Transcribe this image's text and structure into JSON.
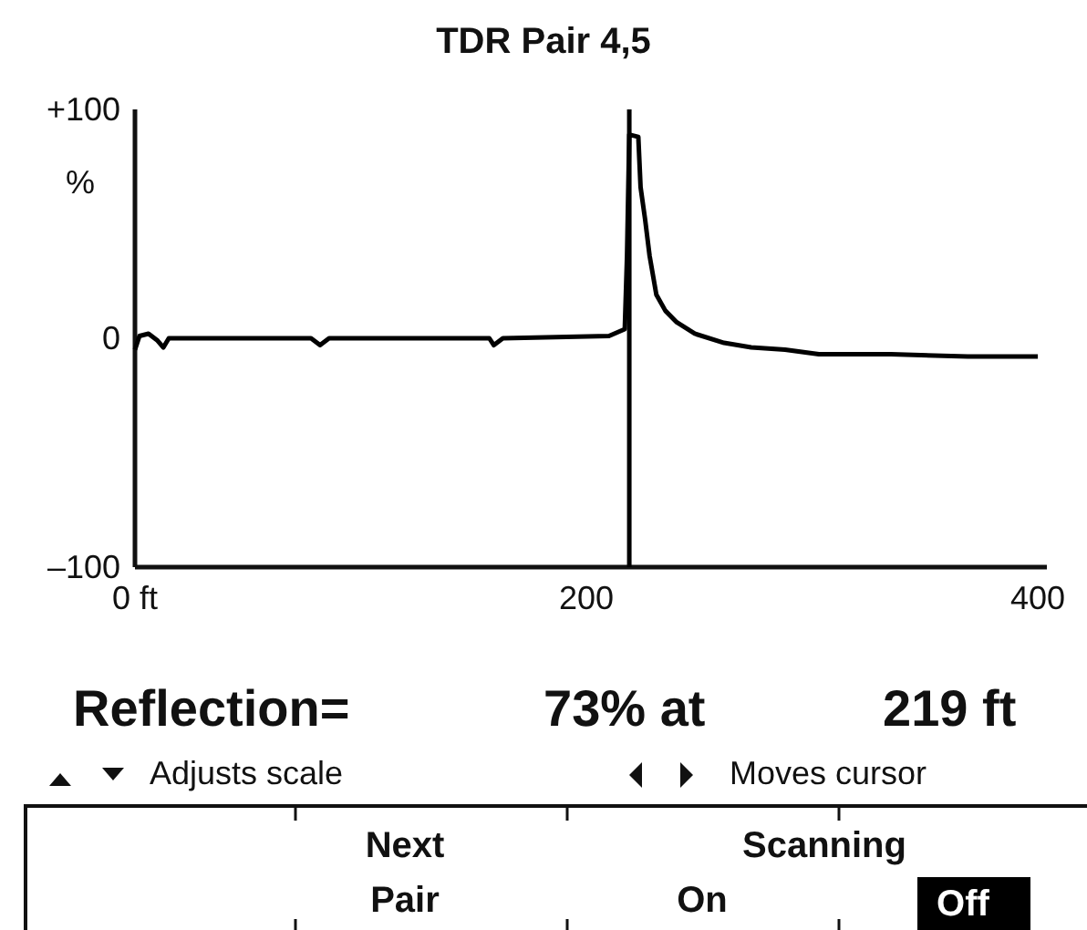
{
  "chart_data": {
    "type": "line",
    "title": "TDR Pair 4,5",
    "ylabel": "%",
    "xlim": [
      0,
      404
    ],
    "xticks": [
      {
        "value": 0,
        "label": "0 ft"
      },
      200,
      400
    ],
    "ylim": [
      -100,
      100
    ],
    "yticks": [
      {
        "value": 100,
        "label": "+100"
      },
      0,
      {
        "value": -100,
        "label": "–100"
      }
    ],
    "series": [
      {
        "color": "#000000",
        "x": [
          0,
          2,
          6,
          10,
          12.6,
          15,
          31,
          78,
          82,
          86,
          157,
          159,
          163,
          210,
          217,
          218,
          219,
          223,
          224,
          226,
          228,
          231,
          235,
          240,
          248,
          261,
          273,
          288,
          303,
          335,
          369,
          400
        ],
        "values": [
          -5,
          1,
          2,
          -1,
          -4,
          0,
          0,
          0,
          -3,
          0,
          0,
          -3,
          0,
          1,
          4,
          36,
          89,
          88,
          66,
          52,
          36,
          19,
          12,
          7,
          2,
          -2,
          -4,
          -5,
          -7,
          -7,
          -8,
          -8
        ]
      }
    ],
    "ref_lines": [
      {
        "axis": "x",
        "value": 219,
        "color": "#000000"
      }
    ],
    "grid": false,
    "annotations": [
      "Reflection=",
      "73% at",
      "219 ft",
      "Adjusts scale",
      "Moves cursor",
      "Next",
      "Pair",
      "Scanning",
      "On",
      "Off"
    ]
  }
}
